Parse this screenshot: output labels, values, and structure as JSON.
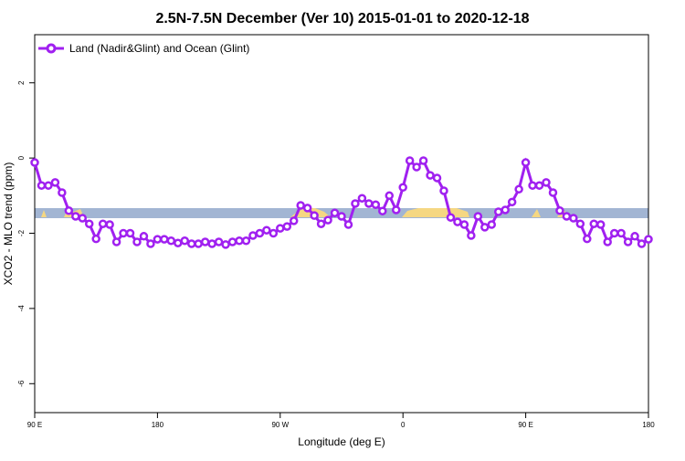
{
  "chart_data": {
    "type": "line",
    "title": "2.5N-7.5N December (Ver 10)   2015-01-01 to 2020-12-18",
    "x_label": "Longitude (deg E)",
    "y_label": "XCO2 - MLO trend (ppm)",
    "x": [
      90,
      95,
      100,
      105,
      110,
      115,
      120,
      125,
      130,
      135,
      140,
      145,
      150,
      155,
      160,
      165,
      170,
      175,
      180,
      185,
      190,
      195,
      200,
      205,
      210,
      215,
      220,
      225,
      230,
      235,
      240,
      245,
      250,
      255,
      260,
      265,
      270,
      275,
      280,
      285,
      290,
      295,
      300,
      305,
      310,
      315,
      320,
      325,
      330,
      335,
      340,
      345,
      350,
      355,
      360,
      365,
      370,
      375,
      380,
      385,
      390,
      395,
      400,
      405,
      410,
      415,
      420,
      425,
      430,
      435,
      440,
      445,
      450,
      455,
      460,
      465,
      470,
      475,
      480,
      485,
      490,
      495,
      500,
      505,
      510,
      515,
      520,
      525,
      530,
      535,
      540
    ],
    "series": [
      {
        "name": "Land (Nadir&Glint) and Ocean (Glint)",
        "color": "#a020f0",
        "values": [
          -0.12,
          -0.73,
          -0.73,
          -0.65,
          -0.92,
          -1.4,
          -1.55,
          -1.6,
          -1.75,
          -2.15,
          -1.75,
          -1.77,
          -2.23,
          -2.0,
          -2.0,
          -2.23,
          -2.08,
          -2.28,
          -2.16,
          -2.16,
          -2.2,
          -2.26,
          -2.2,
          -2.28,
          -2.28,
          -2.23,
          -2.28,
          -2.23,
          -2.3,
          -2.23,
          -2.2,
          -2.2,
          -2.06,
          -2.0,
          -1.92,
          -2.0,
          -1.87,
          -1.82,
          -1.67,
          -1.26,
          -1.33,
          -1.53,
          -1.75,
          -1.65,
          -1.46,
          -1.55,
          -1.77,
          -1.21,
          -1.07,
          -1.21,
          -1.24,
          -1.41,
          -1.0,
          -1.38,
          -0.78,
          -0.07,
          -0.24,
          -0.07,
          -0.46,
          -0.53,
          -0.87,
          -1.58,
          -1.7,
          -1.77,
          -2.06,
          -1.55,
          -1.84,
          -1.77,
          -1.43,
          -1.38,
          -1.17,
          -0.83,
          -0.12,
          -0.73,
          -0.73,
          -0.65,
          -0.92,
          -1.4,
          -1.55,
          -1.6,
          -1.75,
          -2.15,
          -1.75,
          -1.77,
          -2.23,
          -2.0,
          -2.0,
          -2.23,
          -2.08,
          -2.28,
          -2.16
        ]
      }
    ],
    "xlim": [
      90,
      540
    ],
    "xticks": [
      {
        "value": 90,
        "label": "90 E"
      },
      180,
      {
        "value": 270,
        "label": "90 W"
      },
      {
        "value": 360,
        "label": "0"
      },
      {
        "value": 450,
        "label": "90 E"
      },
      {
        "value": 540,
        "label": "180"
      }
    ],
    "ylim": [
      -6.77,
      3.28
    ],
    "yticks": [
      2,
      0,
      -2,
      -4,
      -6
    ],
    "legend": "top-left"
  }
}
